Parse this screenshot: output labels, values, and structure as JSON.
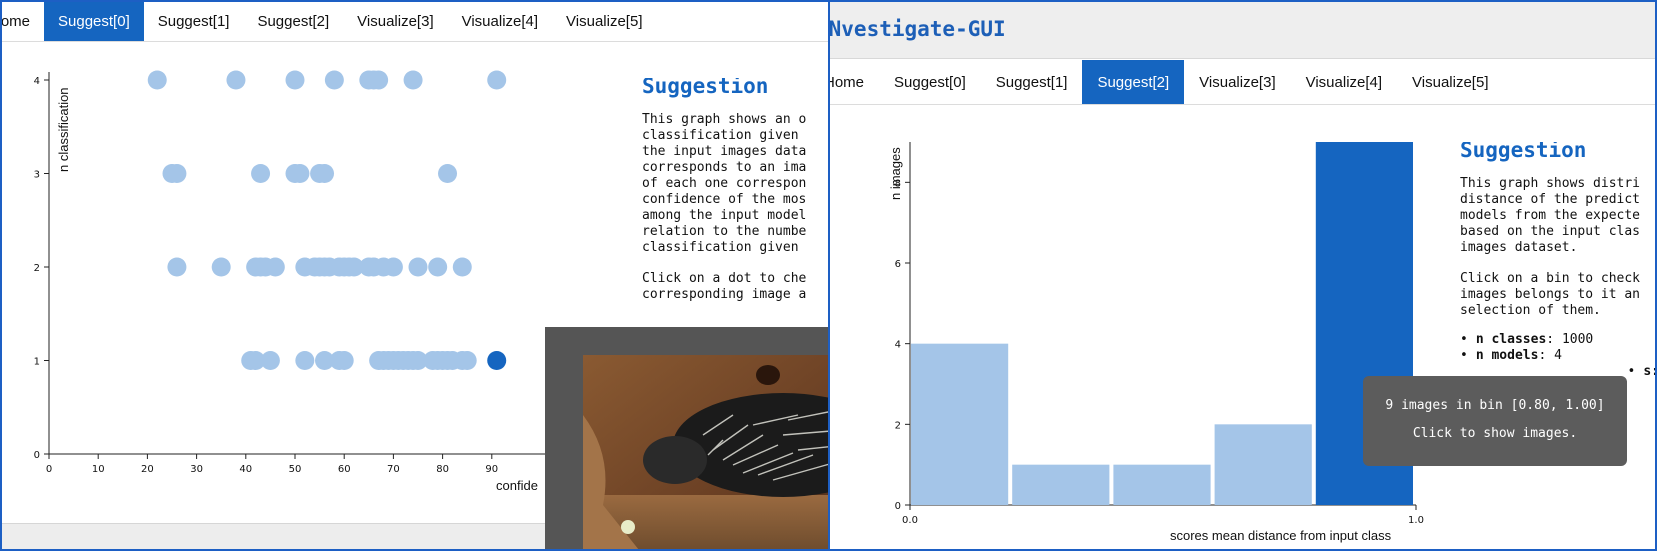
{
  "left": {
    "tabs": [
      {
        "label": "Home"
      },
      {
        "label": "Suggest[0]",
        "active": true
      },
      {
        "label": "Suggest[1]"
      },
      {
        "label": "Suggest[2]"
      },
      {
        "label": "Visualize[3]"
      },
      {
        "label": "Visualize[4]"
      },
      {
        "label": "Visualize[5]"
      }
    ],
    "suggestion": {
      "title": "Suggestion",
      "paragraph1": "This graph shows an o\nclassification given \nthe input images data\ncorresponds to an ima\nof each one correspon\nconfidence of the mos\namong the input model\nrelation to the numbe\nclassification given ",
      "paragraph2": "Click on a dot to che\ncorresponding image a"
    },
    "chart_data": {
      "type": "scatter",
      "xlabel": "confide",
      "ylabel": "n classification",
      "xlim": [
        0,
        100
      ],
      "ylim": [
        0,
        4
      ],
      "x_ticks": [
        "0",
        "10",
        "20",
        "30",
        "40",
        "50",
        "60",
        "70",
        "80",
        "90"
      ],
      "y_ticks": [
        "0",
        "1",
        "2",
        "3",
        "4"
      ],
      "points": [
        {
          "x": 22,
          "y": 4
        },
        {
          "x": 38,
          "y": 4
        },
        {
          "x": 50,
          "y": 4
        },
        {
          "x": 58,
          "y": 4
        },
        {
          "x": 65,
          "y": 4
        },
        {
          "x": 66,
          "y": 4
        },
        {
          "x": 67,
          "y": 4
        },
        {
          "x": 74,
          "y": 4
        },
        {
          "x": 91,
          "y": 4
        },
        {
          "x": 25,
          "y": 3
        },
        {
          "x": 26,
          "y": 3
        },
        {
          "x": 43,
          "y": 3
        },
        {
          "x": 50,
          "y": 3
        },
        {
          "x": 51,
          "y": 3
        },
        {
          "x": 55,
          "y": 3
        },
        {
          "x": 56,
          "y": 3
        },
        {
          "x": 81,
          "y": 3
        },
        {
          "x": 26,
          "y": 2
        },
        {
          "x": 35,
          "y": 2
        },
        {
          "x": 42,
          "y": 2
        },
        {
          "x": 43,
          "y": 2
        },
        {
          "x": 44,
          "y": 2
        },
        {
          "x": 46,
          "y": 2
        },
        {
          "x": 52,
          "y": 2
        },
        {
          "x": 54,
          "y": 2
        },
        {
          "x": 55,
          "y": 2
        },
        {
          "x": 56,
          "y": 2
        },
        {
          "x": 57,
          "y": 2
        },
        {
          "x": 59,
          "y": 2
        },
        {
          "x": 60,
          "y": 2
        },
        {
          "x": 61,
          "y": 2
        },
        {
          "x": 62,
          "y": 2
        },
        {
          "x": 65,
          "y": 2
        },
        {
          "x": 66,
          "y": 2
        },
        {
          "x": 68,
          "y": 2
        },
        {
          "x": 70,
          "y": 2
        },
        {
          "x": 75,
          "y": 2
        },
        {
          "x": 79,
          "y": 2
        },
        {
          "x": 84,
          "y": 2
        },
        {
          "x": 41,
          "y": 1
        },
        {
          "x": 42,
          "y": 1
        },
        {
          "x": 45,
          "y": 1
        },
        {
          "x": 52,
          "y": 1
        },
        {
          "x": 56,
          "y": 1
        },
        {
          "x": 59,
          "y": 1
        },
        {
          "x": 60,
          "y": 1
        },
        {
          "x": 67,
          "y": 1
        },
        {
          "x": 68,
          "y": 1
        },
        {
          "x": 69,
          "y": 1
        },
        {
          "x": 70,
          "y": 1
        },
        {
          "x": 71,
          "y": 1
        },
        {
          "x": 72,
          "y": 1
        },
        {
          "x": 73,
          "y": 1
        },
        {
          "x": 74,
          "y": 1
        },
        {
          "x": 75,
          "y": 1
        },
        {
          "x": 78,
          "y": 1
        },
        {
          "x": 79,
          "y": 1
        },
        {
          "x": 80,
          "y": 1
        },
        {
          "x": 81,
          "y": 1
        },
        {
          "x": 82,
          "y": 1
        },
        {
          "x": 84,
          "y": 1
        },
        {
          "x": 85,
          "y": 1
        },
        {
          "x": 91,
          "y": 1,
          "selected": true
        }
      ]
    }
  },
  "right": {
    "app_title": "NNvestigate-GUI",
    "tabs": [
      {
        "label": "Home"
      },
      {
        "label": "Suggest[0]"
      },
      {
        "label": "Suggest[1]"
      },
      {
        "label": "Suggest[2]",
        "active": true
      },
      {
        "label": "Visualize[3]"
      },
      {
        "label": "Visualize[4]"
      },
      {
        "label": "Visualize[5]"
      }
    ],
    "suggestion": {
      "title": "Suggestion",
      "paragraph1": "This graph shows distri\ndistance of the predict\nmodels from the expecte\nbased on the input clas\nimages dataset.",
      "paragraph2": "Click on a bin to check\nimages belongs to it an\nselection of them.",
      "stats": [
        {
          "key": "n classes",
          "value": "1000"
        },
        {
          "key": "n models",
          "value": "4"
        },
        {
          "key": "",
          "value": "s:"
        }
      ]
    },
    "tooltip": {
      "line1": "9 images in bin [0.80, 1.00]",
      "line2": "Click to show images."
    },
    "chart_data": {
      "type": "bar",
      "xlabel": "scores mean distance from input class",
      "ylabel": "n images",
      "xlim": [
        0.0,
        1.0
      ],
      "ylim": [
        0,
        9
      ],
      "x_ticks": [
        "0.0",
        "1.0"
      ],
      "y_ticks": [
        "0",
        "2",
        "4",
        "6",
        "8"
      ],
      "bins": [
        {
          "range": [
            0.0,
            0.2
          ],
          "count": 4
        },
        {
          "range": [
            0.2,
            0.4
          ],
          "count": 1
        },
        {
          "range": [
            0.4,
            0.6
          ],
          "count": 1
        },
        {
          "range": [
            0.6,
            0.8
          ],
          "count": 2
        },
        {
          "range": [
            0.8,
            1.0
          ],
          "count": 9,
          "selected": true
        }
      ]
    }
  },
  "colors": {
    "accent": "#1565c0",
    "point": "#a4c5e8",
    "selected": "#1565c0",
    "tooltip_bg": "#5c5c5c",
    "modal_bg": "#555555"
  }
}
